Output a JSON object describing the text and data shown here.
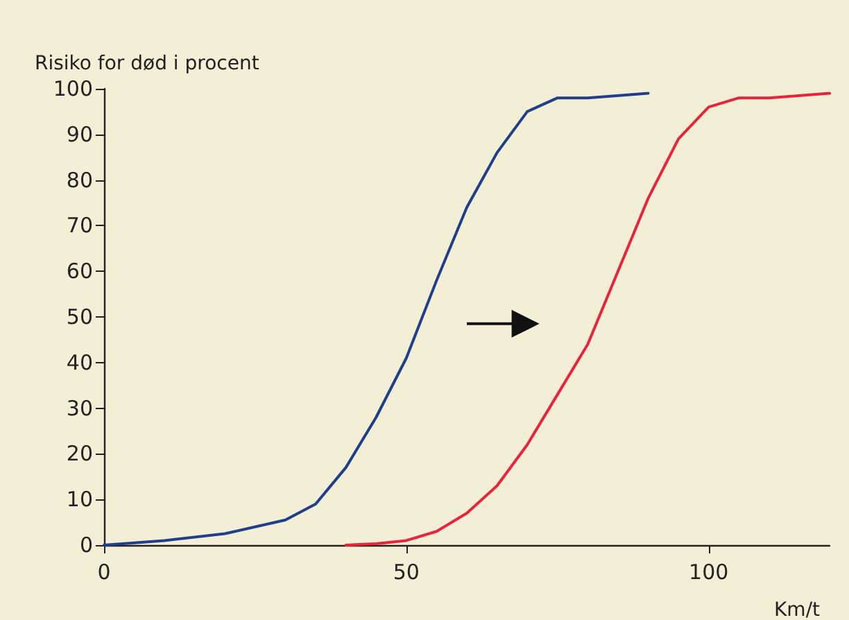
{
  "chart_data": {
    "type": "line",
    "ylabel": "Risiko for død i procent",
    "xlabel": "Km/t",
    "xlim": [
      0,
      120
    ],
    "xticks": [
      0,
      50,
      100
    ],
    "ylim": [
      0,
      100
    ],
    "yticks": [
      0,
      10,
      20,
      30,
      40,
      50,
      60,
      70,
      80,
      90,
      100
    ],
    "grid": false,
    "marker": "none",
    "line_style": "solid",
    "series": [
      {
        "color": "#1f3f8a",
        "x": [
          0,
          10,
          20,
          30,
          35,
          40,
          45,
          50,
          55,
          60,
          65,
          70,
          75,
          80,
          90
        ],
        "values": [
          0,
          1,
          2.5,
          5.5,
          9,
          17,
          28,
          41,
          58,
          74,
          86,
          95,
          98,
          98,
          99
        ]
      },
      {
        "color": "#e8243a",
        "x": [
          40,
          45,
          50,
          55,
          60,
          65,
          70,
          75,
          80,
          85,
          90,
          95,
          100,
          105,
          110,
          120
        ],
        "values": [
          0,
          0.3,
          1,
          3,
          7,
          13,
          22,
          33,
          44,
          60,
          76,
          89,
          96,
          98,
          98,
          99
        ]
      }
    ]
  }
}
